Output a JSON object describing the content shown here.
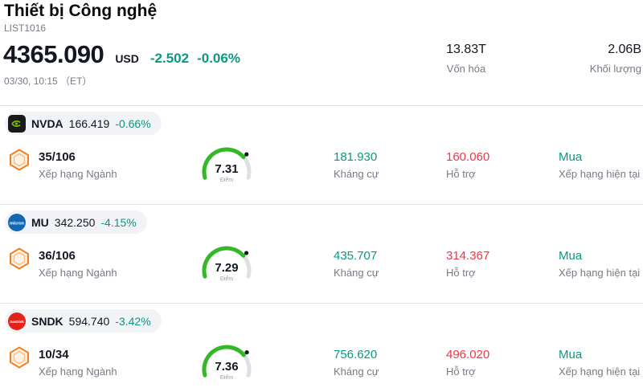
{
  "header": {
    "title": "Thiết bị Công nghệ",
    "list_id": "LIST1016",
    "price": "4365.090",
    "currency": "USD",
    "change_abs": "-2.502",
    "change_pct": "-0.06%",
    "datetime": "03/30, 10:15 （ET）",
    "stats": {
      "market_cap": {
        "value": "13.83T",
        "label": "Vốn hóa"
      },
      "volume": {
        "value": "2.06B",
        "label": "Khối lượng"
      }
    }
  },
  "labels": {
    "industry_rank": "Xếp hạng Ngành",
    "score": "Điểm",
    "resistance": "Kháng cự",
    "support": "Hỗ trợ",
    "current_rating": "Xếp hạng hiện tại"
  },
  "colors": {
    "positive_teal": "#089981",
    "negative_red": "#f23645",
    "gauge_green": "#35b729",
    "gauge_track": "#dde1e6",
    "rank_badge_orange": "#f2801e",
    "pill_background": "#f1f3f6"
  },
  "stocks": [
    {
      "ticker": "NVDA",
      "price": "166.419",
      "change_pct": "-0.66%",
      "rank": "35/106",
      "score": "7.31",
      "score_value": 7.31,
      "resistance": "181.930",
      "support": "160.060",
      "rating": "Mua",
      "logo": "nvidia-logo"
    },
    {
      "ticker": "MU",
      "price": "342.250",
      "change_pct": "-4.15%",
      "rank": "36/106",
      "score": "7.29",
      "score_value": 7.29,
      "resistance": "435.707",
      "support": "314.367",
      "rating": "Mua",
      "logo": "micron-logo"
    },
    {
      "ticker": "SNDK",
      "price": "594.740",
      "change_pct": "-3.42%",
      "rank": "10/34",
      "score": "7.36",
      "score_value": 7.36,
      "resistance": "756.620",
      "support": "496.020",
      "rating": "Mua",
      "logo": "sandisk-logo"
    }
  ]
}
